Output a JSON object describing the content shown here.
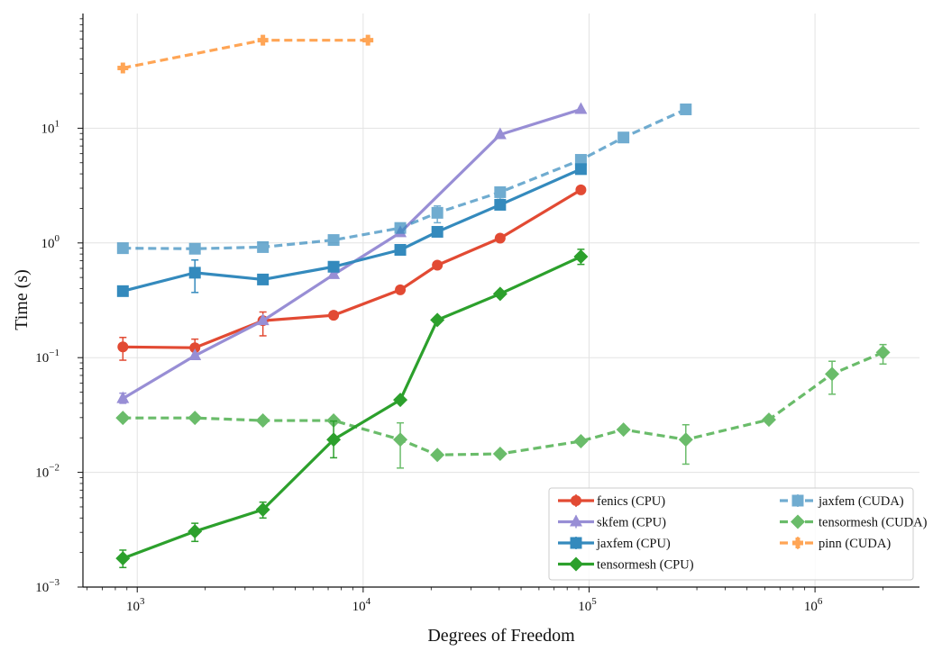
{
  "chart_data": {
    "type": "line",
    "xlabel": "Degrees of Freedom",
    "ylabel": "Time (s)",
    "xscale": "log",
    "yscale": "log",
    "xlim": [
      575,
      2900000
    ],
    "ylim": [
      0.001,
      100
    ],
    "xticks": [
      {
        "base": "10",
        "exp": "3",
        "value": 1000
      },
      {
        "base": "10",
        "exp": "4",
        "value": 10000
      },
      {
        "base": "10",
        "exp": "5",
        "value": 100000
      },
      {
        "base": "10",
        "exp": "6",
        "value": 1000000
      }
    ],
    "yticks": [
      {
        "base": "10",
        "exp": "−3",
        "value": 0.001
      },
      {
        "base": "10",
        "exp": "−2",
        "value": 0.01
      },
      {
        "base": "10",
        "exp": "−1",
        "value": 0.1
      },
      {
        "base": "10",
        "exp": "0",
        "value": 1
      },
      {
        "base": "10",
        "exp": "1",
        "value": 10
      }
    ],
    "grid": true,
    "legend_placement": "lower-right",
    "series": [
      {
        "name": "fenics (CPU)",
        "color": "#e24a33",
        "marker": "circle",
        "dash": false,
        "alpha": 1,
        "x": [
          864,
          1800,
          3600,
          7400,
          14600,
          21300,
          40400,
          92000
        ],
        "y": [
          0.124,
          0.122,
          0.21,
          0.234,
          0.39,
          0.64,
          1.1,
          2.9
        ],
        "yerr": [
          [
            0.095,
            0.15
          ],
          [
            0.1,
            0.145
          ],
          [
            0.155,
            0.25
          ],
          null,
          null,
          null,
          null,
          null
        ]
      },
      {
        "name": "skfem (CPU)",
        "color": "#988ed5",
        "marker": "triangle",
        "dash": false,
        "alpha": 1,
        "x": [
          864,
          1800,
          3600,
          7400,
          14600,
          40400,
          92000
        ],
        "y": [
          0.044,
          0.104,
          0.21,
          0.53,
          1.23,
          8.8,
          14.6
        ],
        "yerr": [
          [
            0.04,
            0.049
          ],
          null,
          null,
          null,
          null,
          null,
          null
        ]
      },
      {
        "name": "jaxfem (CPU)",
        "color": "#348abd",
        "marker": "square",
        "dash": false,
        "alpha": 1,
        "x": [
          864,
          1800,
          3600,
          7400,
          14600,
          21300,
          40400,
          92000
        ],
        "y": [
          0.38,
          0.55,
          0.48,
          0.62,
          0.87,
          1.25,
          2.15,
          4.4
        ],
        "yerr": [
          null,
          [
            0.37,
            0.71
          ],
          null,
          null,
          null,
          null,
          null,
          null
        ]
      },
      {
        "name": "tensormesh (CPU)",
        "color": "#2ca02c",
        "marker": "diamond",
        "dash": false,
        "alpha": 1,
        "x": [
          864,
          1800,
          3600,
          7400,
          14600,
          21300,
          40400,
          92000
        ],
        "y": [
          0.00178,
          0.00306,
          0.00473,
          0.0193,
          0.0428,
          0.213,
          0.36,
          0.76
        ],
        "yerr": [
          [
            0.00148,
            0.0021
          ],
          [
            0.0025,
            0.0036
          ],
          [
            0.004,
            0.0055
          ],
          [
            0.0134,
            0.028
          ],
          null,
          null,
          null,
          [
            0.65,
            0.88
          ]
        ]
      },
      {
        "name": "jaxfem (CUDA)",
        "color": "#348abd",
        "marker": "square",
        "dash": true,
        "alpha": 0.7,
        "x": [
          864,
          1800,
          3600,
          7400,
          14600,
          21300,
          40400,
          92000,
          142000,
          268000
        ],
        "y": [
          0.9,
          0.89,
          0.92,
          1.06,
          1.35,
          1.83,
          2.77,
          5.3,
          8.3,
          14.6
        ],
        "yerr": [
          null,
          null,
          null,
          null,
          null,
          [
            1.5,
            2.1
          ],
          [
            2.4,
            3.0
          ],
          null,
          null,
          null
        ]
      },
      {
        "name": "tensormesh (CUDA)",
        "color": "#2ca02c",
        "marker": "diamond",
        "dash": true,
        "alpha": 0.7,
        "x": [
          864,
          1800,
          3600,
          7400,
          14600,
          21300,
          40400,
          92000,
          142000,
          268000,
          625000,
          1190000,
          2000000
        ],
        "y": [
          0.0298,
          0.0298,
          0.0283,
          0.0283,
          0.0193,
          0.0142,
          0.0145,
          0.0187,
          0.0236,
          0.0193,
          0.0288,
          0.072,
          0.111
        ],
        "yerr": [
          null,
          null,
          null,
          null,
          [
            0.0109,
            0.027
          ],
          null,
          null,
          null,
          null,
          [
            0.0118,
            0.026
          ],
          null,
          [
            0.048,
            0.093
          ],
          [
            0.088,
            0.13
          ]
        ]
      },
      {
        "name": "pinn (CUDA)",
        "color": "#ff7f0e",
        "marker": "plus",
        "dash": true,
        "alpha": 0.7,
        "x": [
          864,
          3600,
          10500
        ],
        "y": [
          33.5,
          58.5,
          58.5
        ],
        "yerr": [
          null,
          null,
          null
        ]
      }
    ]
  }
}
